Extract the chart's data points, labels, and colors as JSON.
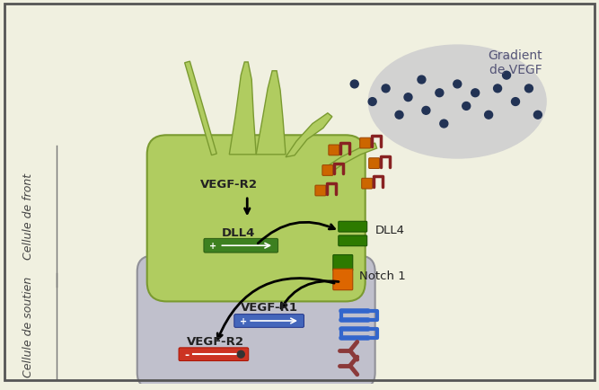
{
  "background_color": "#f0f0e0",
  "border_color": "#555555",
  "gradient_vegf_text": "Gradient\nde VEGF",
  "gradient_vegf_color": "#555577",
  "cellule_front_label": "Cellule de front",
  "cellule_soutien_label": "Cellule de soutien",
  "dll4_label": "DLL4",
  "notch1_label": "Notch 1",
  "vegfr2_front_label": "VEGF-R2",
  "vegfr1_soutien_label": "VEGF-R1",
  "vegfr2_soutien_label": "VEGF-R2",
  "front_cell_color": "#b0cc60",
  "front_cell_edge": "#7a9a30",
  "soutien_cell_color": "#c0c0cc",
  "soutien_cell_edge": "#909098",
  "dot_color": "#223355",
  "cloud_color": "#c8c8cc",
  "arrow_color": "#111111",
  "label_color": "#222222",
  "side_label_color": "#444444"
}
